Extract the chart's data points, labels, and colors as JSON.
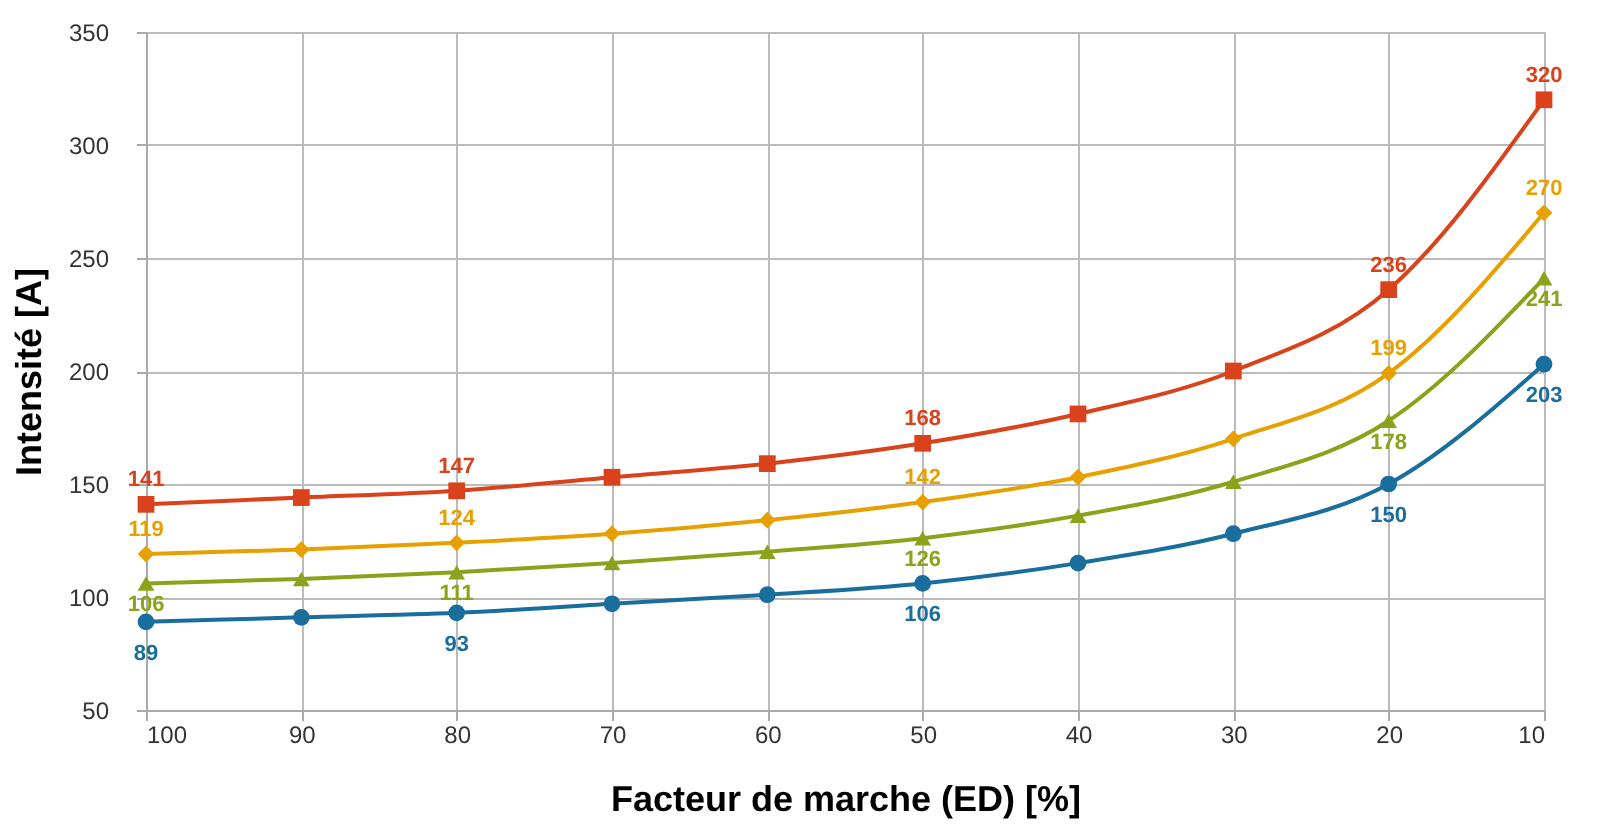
{
  "chart_data": {
    "type": "line",
    "xlabel": "Facteur de marche (ED) [%]",
    "ylabel": "Intensité [A]",
    "x": [
      100,
      90,
      80,
      70,
      60,
      50,
      40,
      30,
      20,
      10
    ],
    "xlim": [
      100,
      10
    ],
    "xticks": [
      100,
      90,
      80,
      70,
      60,
      50,
      40,
      30,
      20,
      10
    ],
    "ylim": [
      50,
      350
    ],
    "yticks": [
      50,
      100,
      150,
      200,
      250,
      300,
      350
    ],
    "grid": true,
    "legend": false,
    "line_style": "solid",
    "series": [
      {
        "color": "#d9421a",
        "marker": "square",
        "values": [
          141,
          144,
          147,
          153,
          159,
          168,
          181,
          200,
          236,
          320
        ],
        "value_labels": [
          "141",
          null,
          "147",
          null,
          null,
          "168",
          null,
          null,
          "236",
          "320"
        ]
      },
      {
        "color": "#e6a100",
        "marker": "diamond",
        "values": [
          119,
          121,
          124,
          128,
          134,
          142,
          153,
          170,
          199,
          270
        ],
        "value_labels": [
          "119",
          null,
          "124",
          null,
          null,
          "142",
          null,
          null,
          "199",
          "270"
        ]
      },
      {
        "color": "#8aa31a",
        "marker": "triangle",
        "values": [
          106,
          108,
          111,
          115,
          120,
          126,
          136,
          151,
          178,
          241
        ],
        "value_labels": [
          "106",
          null,
          "111",
          null,
          null,
          "126",
          null,
          null,
          "178",
          "241"
        ]
      },
      {
        "color": "#1a6e9e",
        "marker": "circle",
        "values": [
          89,
          91,
          93,
          97,
          101,
          106,
          115,
          128,
          150,
          203
        ],
        "value_labels": [
          "89",
          null,
          "93",
          null,
          null,
          "106",
          null,
          null,
          "150",
          "203"
        ]
      }
    ]
  }
}
